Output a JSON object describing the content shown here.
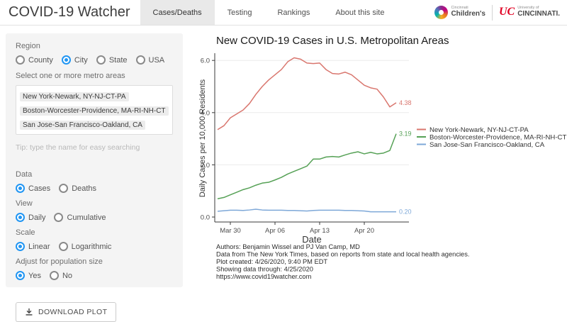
{
  "header": {
    "title": "COVID-19 Watcher",
    "tabs": [
      "Cases/Deaths",
      "Testing",
      "Rankings",
      "About this site"
    ],
    "active_tab": "Cases/Deaths",
    "logos": {
      "childrens": {
        "line1": "Cincinnati",
        "line2": "Children's",
        "icon": "childrens-swirl-icon"
      },
      "uc": {
        "mark": "UC",
        "line1": "University of",
        "line2": "CINCINNATI."
      }
    }
  },
  "sidebar": {
    "region": {
      "label": "Region",
      "options": [
        "County",
        "City",
        "State",
        "USA"
      ],
      "selected": "City"
    },
    "metro": {
      "label": "Select one or more metro areas",
      "items": [
        "New York-Newark, NY-NJ-CT-PA",
        "Boston-Worcester-Providence, MA-RI-NH-CT",
        "San Jose-San Francisco-Oakland, CA"
      ],
      "tip": "Tip: type the name for easy searching"
    },
    "data": {
      "label": "Data",
      "options": [
        "Cases",
        "Deaths"
      ],
      "selected": "Cases"
    },
    "view": {
      "label": "View",
      "options": [
        "Daily",
        "Cumulative"
      ],
      "selected": "Daily"
    },
    "scale": {
      "label": "Scale",
      "options": [
        "Linear",
        "Logarithmic"
      ],
      "selected": "Linear"
    },
    "adjust": {
      "label": "Adjust for population size",
      "options": [
        "Yes",
        "No"
      ],
      "selected": "Yes"
    },
    "download_label": "DOWNLOAD PLOT",
    "download_icon": "download-icon"
  },
  "chart_data": {
    "type": "line",
    "title": "New COVID-19 Cases in U.S. Metropolitan Areas",
    "xlabel": "Date",
    "ylabel": "Daily Cases per 10,000 Residents",
    "x_start": "Mar 28",
    "x_end": "Apr 25",
    "x_ticks": [
      "Mar 30",
      "Apr 06",
      "Apr 13",
      "Apr 20"
    ],
    "x_tick_day_index": [
      2,
      9,
      16,
      23
    ],
    "y_ticks": [
      0.0,
      2.0,
      4.0,
      6.0
    ],
    "ylim": [
      0,
      6.3
    ],
    "grid": true,
    "legend_position": "right",
    "series": [
      {
        "name": "New York-Newark, NY-NJ-CT-PA",
        "color": "#d9766e",
        "end_label": "4.38",
        "values": [
          3.35,
          3.5,
          3.8,
          3.95,
          4.1,
          4.35,
          4.7,
          5.0,
          5.25,
          5.45,
          5.65,
          5.95,
          6.1,
          6.05,
          5.9,
          5.88,
          5.9,
          5.65,
          5.5,
          5.48,
          5.55,
          5.45,
          5.25,
          5.05,
          4.95,
          4.9,
          4.6,
          4.22,
          4.38
        ]
      },
      {
        "name": "Boston-Worcester-Providence, MA-RI-NH-CT",
        "color": "#56a156",
        "end_label": "3.19",
        "values": [
          0.7,
          0.75,
          0.85,
          0.95,
          1.05,
          1.12,
          1.22,
          1.3,
          1.33,
          1.42,
          1.52,
          1.65,
          1.75,
          1.85,
          1.95,
          2.22,
          2.22,
          2.3,
          2.32,
          2.3,
          2.38,
          2.45,
          2.5,
          2.42,
          2.48,
          2.42,
          2.45,
          2.55,
          3.19
        ]
      },
      {
        "name": "San Jose-San Francisco-Oakland, CA",
        "color": "#7ea8d8",
        "end_label": "0.20",
        "values": [
          0.22,
          0.24,
          0.26,
          0.26,
          0.25,
          0.27,
          0.3,
          0.27,
          0.26,
          0.26,
          0.26,
          0.25,
          0.25,
          0.24,
          0.23,
          0.25,
          0.26,
          0.26,
          0.26,
          0.26,
          0.25,
          0.25,
          0.24,
          0.23,
          0.2,
          0.2,
          0.2,
          0.2,
          0.2
        ]
      }
    ],
    "notes": [
      "Authors: Benjamin Wissel and PJ Van Camp, MD",
      "Data from The New York Times, based on reports from state and local health agencies.",
      "Plot created: 4/26/2020, 9:40 PM EDT",
      "Showing data through: 4/25/2020",
      "https://www.covid19watcher.com"
    ]
  }
}
